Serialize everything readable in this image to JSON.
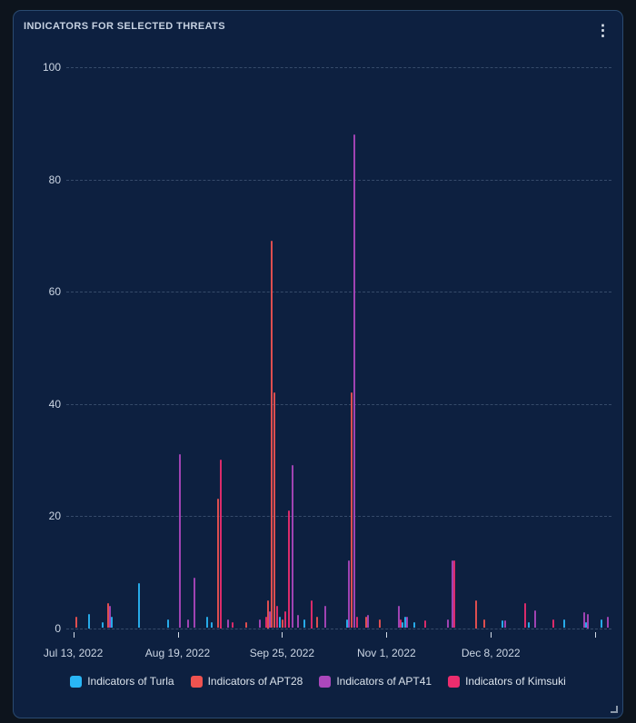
{
  "panel": {
    "title": "INDICATORS FOR SELECTED THREATS",
    "menu_icon": "kebab-menu",
    "resize_icon": "corner-resize"
  },
  "colors": {
    "page_bg": "#0d141d",
    "panel_bg": "#0d2040",
    "panel_border": "#2a4a70",
    "text": "#ccd6e4",
    "grid": "rgba(162,186,214,0.28)",
    "turla": "#29b6f6",
    "apt28": "#ef5350",
    "apt41": "#ab47bc",
    "kimsuki": "#ec2d6e"
  },
  "legend": {
    "items": [
      {
        "id": "turla",
        "label": "Indicators of Turla"
      },
      {
        "id": "apt28",
        "label": "Indicators of APT28"
      },
      {
        "id": "apt41",
        "label": "Indicators of APT41"
      },
      {
        "id": "kimsuki",
        "label": "Indicators of Kimsuki"
      }
    ]
  },
  "chart_data": {
    "type": "bar",
    "title": "INDICATORS FOR SELECTED THREATS",
    "xlabel": "",
    "ylabel": "",
    "grid": "dashed horizontal",
    "legend_position": "bottom",
    "x_axis": {
      "unit": "days since Jul 13, 2022",
      "day_zero_date": "Jul 13, 2022",
      "tick_days": [
        0,
        37,
        74,
        111,
        148,
        185
      ],
      "tick_labels": [
        "Jul 13, 2022",
        "Aug 19, 2022",
        "Sep 25, 2022",
        "Nov 1, 2022",
        "Dec 8, 2022",
        ""
      ]
    },
    "y_axis": {
      "ticks": [
        0,
        20,
        40,
        60,
        80,
        100
      ],
      "range": [
        0,
        105
      ]
    },
    "series": [
      {
        "id": "turla",
        "name": "Indicators of Turla",
        "points": [
          [
            5.5,
            2.5
          ],
          [
            10.4,
            1
          ],
          [
            13.5,
            2
          ],
          [
            23.3,
            8
          ],
          [
            33.6,
            1.5
          ],
          [
            47.5,
            2
          ],
          [
            49.1,
            1
          ],
          [
            73.2,
            2
          ],
          [
            81.9,
            1.5
          ],
          [
            97,
            1.5
          ],
          [
            116.7,
            1
          ],
          [
            117.6,
            2
          ],
          [
            120.9,
            1
          ],
          [
            152.1,
            1.3
          ],
          [
            161.4,
            1
          ],
          [
            174,
            1.5
          ],
          [
            181.7,
            1
          ],
          [
            187.2,
            1.5
          ]
        ]
      },
      {
        "id": "apt28",
        "name": "Indicators of APT28",
        "points": [
          [
            1,
            2
          ],
          [
            12.4,
            4.5
          ],
          [
            51.3,
            23
          ],
          [
            61.3,
            1
          ],
          [
            69,
            5
          ],
          [
            70.3,
            69
          ],
          [
            71.3,
            42
          ],
          [
            74.2,
            1.5
          ],
          [
            86.4,
            2
          ],
          [
            98.6,
            42
          ],
          [
            103.8,
            2
          ],
          [
            108.6,
            1.5
          ],
          [
            142.8,
            5
          ],
          [
            145.6,
            1.5
          ]
        ]
      },
      {
        "id": "apt41",
        "name": "Indicators of APT41",
        "points": [
          [
            13,
            4
          ],
          [
            37.8,
            31
          ],
          [
            40.7,
            1.5
          ],
          [
            42.9,
            9
          ],
          [
            54.9,
            1.5
          ],
          [
            66.1,
            1.5
          ],
          [
            69.7,
            3
          ],
          [
            77.7,
            29
          ],
          [
            79.6,
            2.3
          ],
          [
            89.3,
            4
          ],
          [
            97.7,
            12
          ],
          [
            99.6,
            88
          ],
          [
            104.4,
            2.3
          ],
          [
            115.4,
            4
          ],
          [
            118.3,
            2
          ],
          [
            132.8,
            1.5
          ],
          [
            134.4,
            12
          ],
          [
            153,
            1.3
          ],
          [
            163.7,
            3.1
          ],
          [
            181.1,
            2.8
          ],
          [
            182.4,
            2.5
          ],
          [
            189.4,
            2
          ]
        ]
      },
      {
        "id": "kimsuki",
        "name": "Indicators of Kimsuki",
        "points": [
          [
            52.3,
            30
          ],
          [
            56.5,
            1
          ],
          [
            68.4,
            2
          ],
          [
            72.2,
            4
          ],
          [
            75.1,
            3
          ],
          [
            76.4,
            21
          ],
          [
            84.5,
            5
          ],
          [
            100.6,
            2
          ],
          [
            116,
            1.6
          ],
          [
            124.7,
            1.3
          ],
          [
            135,
            12
          ],
          [
            160.1,
            4.4
          ],
          [
            170.1,
            1.5
          ]
        ]
      }
    ]
  }
}
